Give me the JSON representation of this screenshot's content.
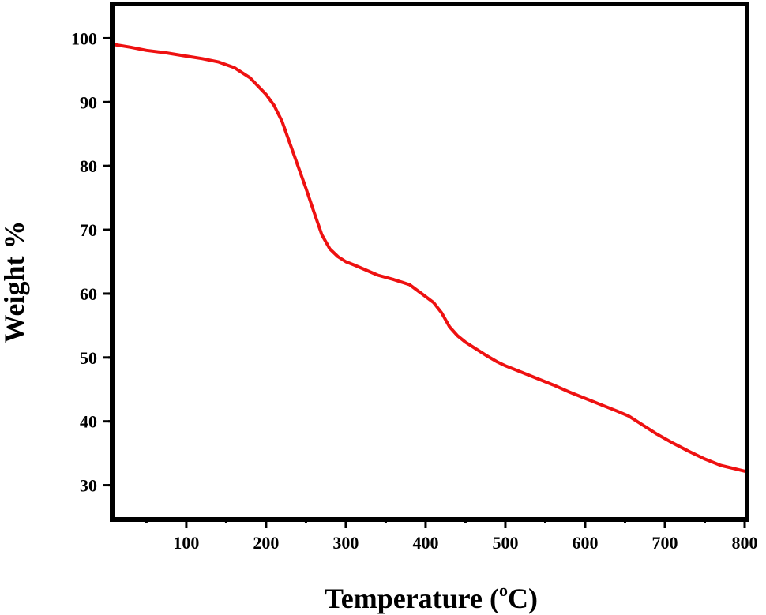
{
  "chart_data": {
    "type": "line",
    "title": "",
    "xlabel": "Temperature (",
    "xlabel_sup": "o",
    "xlabel_unit": "C)",
    "ylabel": "Weight %",
    "xlim": [
      10,
      800
    ],
    "ylim": [
      25,
      105
    ],
    "x_ticks": [
      100,
      200,
      300,
      400,
      500,
      600,
      700,
      800
    ],
    "x_tick_labels": [
      "100",
      "200",
      "300",
      "400",
      "500",
      "600",
      "700",
      "800"
    ],
    "y_ticks": [
      30,
      40,
      50,
      60,
      70,
      80,
      90,
      100
    ],
    "y_tick_labels": [
      "30",
      "40",
      "50",
      "60",
      "70",
      "80",
      "90",
      "100"
    ],
    "grid": false,
    "line_color": "#ee1111",
    "series": [
      {
        "x": [
          10,
          30,
          50,
          75,
          100,
          120,
          140,
          160,
          180,
          200,
          210,
          220,
          230,
          240,
          250,
          260,
          270,
          280,
          290,
          300,
          310,
          325,
          340,
          360,
          380,
          395,
          410,
          420,
          430,
          440,
          450,
          460,
          475,
          490,
          500,
          520,
          540,
          560,
          580,
          600,
          620,
          640,
          655,
          670,
          690,
          710,
          730,
          750,
          770,
          790,
          800
        ],
        "y": [
          99.0,
          98.6,
          98.1,
          97.7,
          97.2,
          96.8,
          96.3,
          95.4,
          93.8,
          91.2,
          89.5,
          87.0,
          83.5,
          80.0,
          76.5,
          72.8,
          69.2,
          67.0,
          65.8,
          65.0,
          64.5,
          63.7,
          62.9,
          62.2,
          61.4,
          60.0,
          58.6,
          57.0,
          54.8,
          53.4,
          52.4,
          51.6,
          50.4,
          49.3,
          48.7,
          47.7,
          46.7,
          45.7,
          44.6,
          43.6,
          42.6,
          41.6,
          40.8,
          39.6,
          38.0,
          36.6,
          35.3,
          34.1,
          33.1,
          32.5,
          32.2
        ]
      }
    ]
  }
}
